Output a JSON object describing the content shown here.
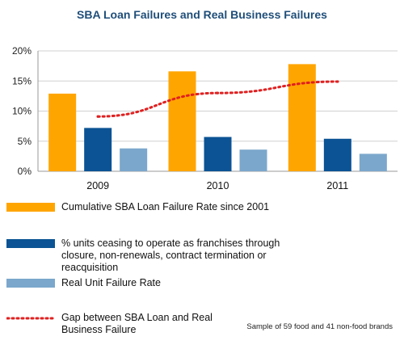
{
  "chart_data": {
    "type": "bar",
    "title": "SBA Loan Failures and Real Business Failures",
    "categories": [
      "2009",
      "2010",
      "2011"
    ],
    "ylim": [
      0,
      20
    ],
    "yticks": [
      "0%",
      "5%",
      "10%",
      "15%",
      "20%"
    ],
    "grid": true,
    "legend_position": "bottom",
    "series": [
      {
        "name": "Cumulative SBA Loan Failure Rate since 2001",
        "type": "bar",
        "color": "#FFA500",
        "values": [
          12.9,
          16.6,
          17.8
        ]
      },
      {
        "name": "% units ceasing to operate as franchises through closure, non-renewals, contract termination or reacquisition",
        "type": "bar",
        "color": "#0B5394",
        "values": [
          7.2,
          5.7,
          5.4
        ]
      },
      {
        "name": "Real Unit Failure Rate",
        "type": "bar",
        "color": "#7BA7CC",
        "values": [
          3.8,
          3.6,
          2.9
        ]
      },
      {
        "name": "Gap between SBA Loan and Real Business Failure",
        "type": "line",
        "style": "dotted",
        "color": "#E02020",
        "values": [
          9.1,
          13.0,
          14.9
        ]
      }
    ]
  },
  "footnote": "Sample of 59 food and 41 non-food brands"
}
